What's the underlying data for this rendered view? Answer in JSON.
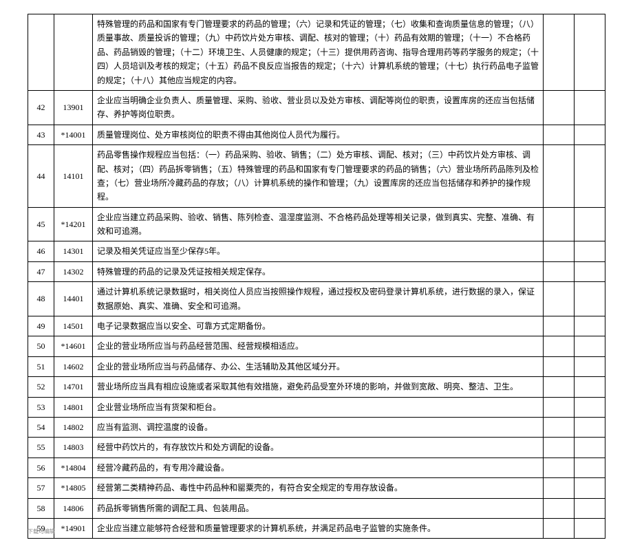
{
  "rows": [
    {
      "a": "",
      "b": "",
      "c": "特殊管理的药品和国家有专门管理要求的药品的管理；（六）记录和凭证的管理；（七）收集和查询质量信息的管理；（八）质量事故、质量投诉的管理；（九）中药饮片处方审核、调配、核对的管理；（十）药品有效期的管理；（十一）不合格药品、药品销毁的管理；（十二）环境卫生、人员健康的规定；（十三）提供用药咨询、指导合理用药等药学服务的规定；（十四）人员培训及考核的规定；（十五）药品不良反应当报告的规定；（十六）计算机系统的管理；（十七）执行药品电子监管的规定；（十八）其他应当规定的内容。"
    },
    {
      "a": "42",
      "b": "13901",
      "c": "企业应当明确企业负责人、质量管理、采购、验收、营业员以及处方审核、调配等岗位的职责，设置库房的还应当包括储存、养护等岗位职责。"
    },
    {
      "a": "43",
      "b": "*14001",
      "c": "质量管理岗位、处方审核岗位的职责不得由其他岗位人员代为履行。"
    },
    {
      "a": "44",
      "b": "14101",
      "c": "药品零售操作规程应当包括：（一）药品采购、验收、销售；（二）处方审核、调配、核对；（三）中药饮片处方审核、调配、核对；（四）药品拆零销售；（五）特殊管理的药品和国家有专门管理要求的药品的销售；（六）营业场所药品陈列及检查；（七）营业场所冷藏药品的存放；（八）计算机系统的操作和管理；（九）设置库房的还应当包括储存和养护的操作规程。"
    },
    {
      "a": "45",
      "b": "*14201",
      "c": "企业应当建立药品采购、验收、销售、陈列检查、温湿度监测、不合格药品处理等相关记录，做到真实、完整、准确、有效和可追溯。"
    },
    {
      "a": "46",
      "b": "14301",
      "c": "记录及相关凭证应当至少保存5年。"
    },
    {
      "a": "47",
      "b": "14302",
      "c": "特殊管理的药品的记录及凭证按相关规定保存。"
    },
    {
      "a": "48",
      "b": "14401",
      "c": "通过计算机系统记录数据时，相关岗位人员应当按照操作规程，通过授权及密码登录计算机系统，进行数据的录入，保证数据原始、真实、准确、安全和可追溯。"
    },
    {
      "a": "49",
      "b": "14501",
      "c": "电子记录数据应当以安全、可靠方式定期备份。"
    },
    {
      "a": "50",
      "b": "*14601",
      "c": "企业的营业场所应当与药品经营范围、经营规模相适应。"
    },
    {
      "a": "51",
      "b": "14602",
      "c": "企业的营业场所应当与药品储存、办公、生活辅助及其他区域分开。"
    },
    {
      "a": "52",
      "b": "14701",
      "c": "营业场所应当具有相应设施或者采取其他有效措施，避免药品受室外环境的影响，并做到宽敞、明亮、整洁、卫生。"
    },
    {
      "a": "53",
      "b": "14801",
      "c": "企业营业场所应当有货架和柜台。"
    },
    {
      "a": "54",
      "b": "14802",
      "c": "应当有监测、调控温度的设备。"
    },
    {
      "a": "55",
      "b": "14803",
      "c": "经营中药饮片的，有存放饮片和处方调配的设备。"
    },
    {
      "a": "56",
      "b": "*14804",
      "c": "经营冷藏药品的，有专用冷藏设备。"
    },
    {
      "a": "57",
      "b": "*14805",
      "c": "经营第二类精神药品、毒性中药品种和罂粟壳的，有符合安全规定的专用存放设备。"
    },
    {
      "a": "58",
      "b": "14806",
      "c": "药品拆零销售所需的调配工具、包装用品。"
    },
    {
      "a": "59",
      "b": "*14901",
      "c": "企业应当建立能够符合经营和质量管理要求的计算机系统，并满足药品电子监管的实施条件。"
    }
  ],
  "footer_note": "下载可编辑"
}
